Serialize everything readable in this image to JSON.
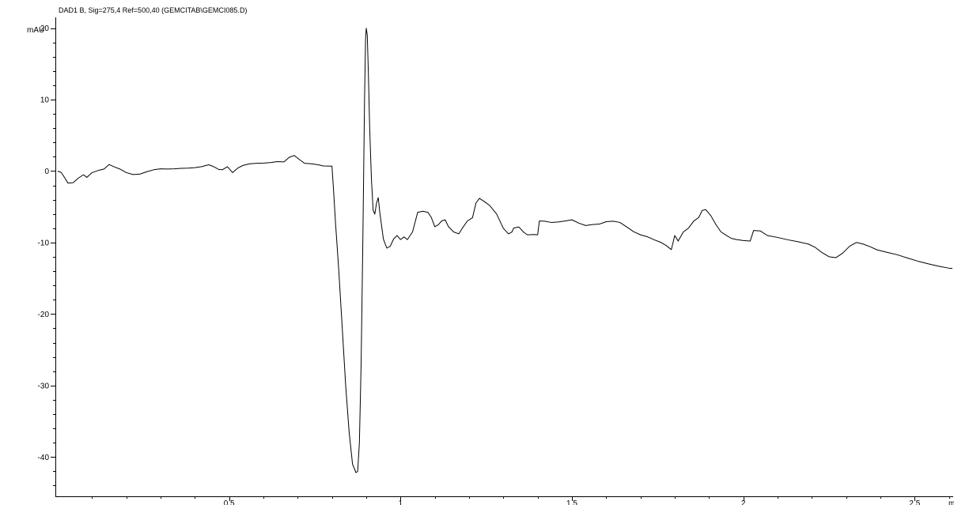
{
  "chart_data": {
    "type": "line",
    "title": "DAD1 B, Sig=275,4 Ref=500,40 (GEMCITAB\\GEMCI085.D)",
    "ylabel": "mAU",
    "xlabel": "",
    "x_unit_partial": "m",
    "xlim": [
      0.0,
      2.61
    ],
    "ylim": [
      -45.5,
      21.5
    ],
    "y_ticks": [
      {
        "value": 20,
        "label": "20"
      },
      {
        "value": 10,
        "label": "10"
      },
      {
        "value": 0,
        "label": "0"
      },
      {
        "value": -10,
        "label": "-10"
      },
      {
        "value": -20,
        "label": "-20"
      },
      {
        "value": -30,
        "label": "-30"
      },
      {
        "value": -40,
        "label": "-40"
      }
    ],
    "x_ticks": [
      {
        "value": 0.5,
        "label": "0.5"
      },
      {
        "value": 1.0,
        "label": "1"
      },
      {
        "value": 1.5,
        "label": "1.5"
      },
      {
        "value": 2.0,
        "label": "2"
      },
      {
        "value": 2.5,
        "label": "2.5"
      }
    ],
    "y_minor_step": 2,
    "x_minor_step": 0.1,
    "grid": false,
    "series": [
      {
        "points": [
          [
            0.0,
            0.0
          ],
          [
            0.01,
            -0.2
          ],
          [
            0.02,
            -0.9
          ],
          [
            0.03,
            -1.7
          ],
          [
            0.045,
            -1.6
          ],
          [
            0.06,
            -1.0
          ],
          [
            0.075,
            -0.5
          ],
          [
            0.085,
            -0.9
          ],
          [
            0.1,
            -0.2
          ],
          [
            0.12,
            0.1
          ],
          [
            0.135,
            0.3
          ],
          [
            0.15,
            0.9
          ],
          [
            0.165,
            0.6
          ],
          [
            0.18,
            0.3
          ],
          [
            0.2,
            -0.2
          ],
          [
            0.22,
            -0.5
          ],
          [
            0.24,
            -0.4
          ],
          [
            0.26,
            -0.1
          ],
          [
            0.28,
            0.2
          ],
          [
            0.3,
            0.3
          ],
          [
            0.32,
            0.3
          ],
          [
            0.34,
            0.3
          ],
          [
            0.36,
            0.4
          ],
          [
            0.38,
            0.4
          ],
          [
            0.4,
            0.5
          ],
          [
            0.42,
            0.6
          ],
          [
            0.44,
            0.9
          ],
          [
            0.45,
            0.7
          ],
          [
            0.46,
            0.5
          ],
          [
            0.47,
            0.2
          ],
          [
            0.48,
            0.2
          ],
          [
            0.495,
            0.6
          ],
          [
            0.51,
            -0.2
          ],
          [
            0.525,
            0.4
          ],
          [
            0.54,
            0.8
          ],
          [
            0.56,
            1.0
          ],
          [
            0.58,
            1.1
          ],
          [
            0.6,
            1.1
          ],
          [
            0.62,
            1.2
          ],
          [
            0.64,
            1.3
          ],
          [
            0.66,
            1.3
          ],
          [
            0.675,
            1.9
          ],
          [
            0.69,
            2.2
          ],
          [
            0.705,
            1.6
          ],
          [
            0.72,
            1.1
          ],
          [
            0.74,
            1.0
          ],
          [
            0.76,
            0.9
          ],
          [
            0.775,
            0.7
          ],
          [
            0.8,
            0.7
          ],
          [
            0.805,
            -3.0
          ],
          [
            0.81,
            -7.0
          ],
          [
            0.815,
            -10.5
          ],
          [
            0.82,
            -14.0
          ],
          [
            0.83,
            -22.0
          ],
          [
            0.84,
            -30.0
          ],
          [
            0.85,
            -36.5
          ],
          [
            0.86,
            -41.0
          ],
          [
            0.87,
            -42.2
          ],
          [
            0.875,
            -42.0
          ],
          [
            0.88,
            -38.0
          ],
          [
            0.885,
            -27.0
          ],
          [
            0.89,
            -10.0
          ],
          [
            0.895,
            10.0
          ],
          [
            0.898,
            18.5
          ],
          [
            0.9,
            20.0
          ],
          [
            0.903,
            19.0
          ],
          [
            0.906,
            14.0
          ],
          [
            0.91,
            6.0
          ],
          [
            0.915,
            -1.0
          ],
          [
            0.92,
            -5.5
          ],
          [
            0.925,
            -6.0
          ],
          [
            0.93,
            -4.5
          ],
          [
            0.935,
            -3.7
          ],
          [
            0.94,
            -6.0
          ],
          [
            0.95,
            -9.5
          ],
          [
            0.96,
            -10.8
          ],
          [
            0.97,
            -10.5
          ],
          [
            0.98,
            -9.5
          ],
          [
            0.99,
            -9.0
          ],
          [
            1.0,
            -9.6
          ],
          [
            1.01,
            -9.2
          ],
          [
            1.02,
            -9.6
          ],
          [
            1.035,
            -8.5
          ],
          [
            1.05,
            -5.8
          ],
          [
            1.065,
            -5.6
          ],
          [
            1.08,
            -5.8
          ],
          [
            1.09,
            -6.5
          ],
          [
            1.1,
            -7.8
          ],
          [
            1.11,
            -7.5
          ],
          [
            1.12,
            -7.0
          ],
          [
            1.13,
            -6.8
          ],
          [
            1.14,
            -7.8
          ],
          [
            1.155,
            -8.5
          ],
          [
            1.17,
            -8.8
          ],
          [
            1.18,
            -8.0
          ],
          [
            1.195,
            -7.0
          ],
          [
            1.21,
            -6.5
          ],
          [
            1.22,
            -4.5
          ],
          [
            1.23,
            -3.8
          ],
          [
            1.245,
            -4.3
          ],
          [
            1.26,
            -4.8
          ],
          [
            1.28,
            -6.0
          ],
          [
            1.3,
            -8.0
          ],
          [
            1.315,
            -8.8
          ],
          [
            1.325,
            -8.5
          ],
          [
            1.33,
            -8.0
          ],
          [
            1.345,
            -7.8
          ],
          [
            1.36,
            -8.6
          ],
          [
            1.37,
            -8.9
          ],
          [
            1.39,
            -8.9
          ],
          [
            1.4,
            -8.9
          ],
          [
            1.405,
            -7.0
          ],
          [
            1.42,
            -7.0
          ],
          [
            1.44,
            -7.2
          ],
          [
            1.46,
            -7.1
          ],
          [
            1.48,
            -7.0
          ],
          [
            1.5,
            -6.8
          ],
          [
            1.52,
            -7.3
          ],
          [
            1.54,
            -7.6
          ],
          [
            1.56,
            -7.5
          ],
          [
            1.58,
            -7.4
          ],
          [
            1.6,
            -7.1
          ],
          [
            1.62,
            -7.0
          ],
          [
            1.64,
            -7.2
          ],
          [
            1.66,
            -7.8
          ],
          [
            1.68,
            -8.5
          ],
          [
            1.7,
            -8.9
          ],
          [
            1.72,
            -9.2
          ],
          [
            1.74,
            -9.6
          ],
          [
            1.76,
            -10.0
          ],
          [
            1.775,
            -10.4
          ],
          [
            1.79,
            -11.0
          ],
          [
            1.8,
            -9.0
          ],
          [
            1.81,
            -9.8
          ],
          [
            1.825,
            -8.5
          ],
          [
            1.84,
            -8.0
          ],
          [
            1.855,
            -7.0
          ],
          [
            1.87,
            -6.5
          ],
          [
            1.88,
            -5.5
          ],
          [
            1.89,
            -5.4
          ],
          [
            1.905,
            -6.2
          ],
          [
            1.92,
            -7.5
          ],
          [
            1.935,
            -8.5
          ],
          [
            1.95,
            -9.0
          ],
          [
            1.965,
            -9.4
          ],
          [
            1.98,
            -9.6
          ],
          [
            2.0,
            -9.7
          ],
          [
            2.02,
            -9.8
          ],
          [
            2.03,
            -8.3
          ],
          [
            2.05,
            -8.4
          ],
          [
            2.07,
            -9.0
          ],
          [
            2.1,
            -9.3
          ],
          [
            2.13,
            -9.6
          ],
          [
            2.16,
            -9.9
          ],
          [
            2.19,
            -10.2
          ],
          [
            2.21,
            -10.7
          ],
          [
            2.23,
            -11.4
          ],
          [
            2.25,
            -12.0
          ],
          [
            2.27,
            -12.1
          ],
          [
            2.29,
            -11.5
          ],
          [
            2.31,
            -10.5
          ],
          [
            2.33,
            -10.0
          ],
          [
            2.35,
            -10.2
          ],
          [
            2.37,
            -10.6
          ],
          [
            2.39,
            -11.0
          ],
          [
            2.42,
            -11.4
          ],
          [
            2.45,
            -11.7
          ],
          [
            2.48,
            -12.2
          ],
          [
            2.51,
            -12.6
          ],
          [
            2.54,
            -13.0
          ],
          [
            2.57,
            -13.3
          ],
          [
            2.6,
            -13.6
          ],
          [
            2.61,
            -13.6
          ]
        ]
      }
    ]
  }
}
